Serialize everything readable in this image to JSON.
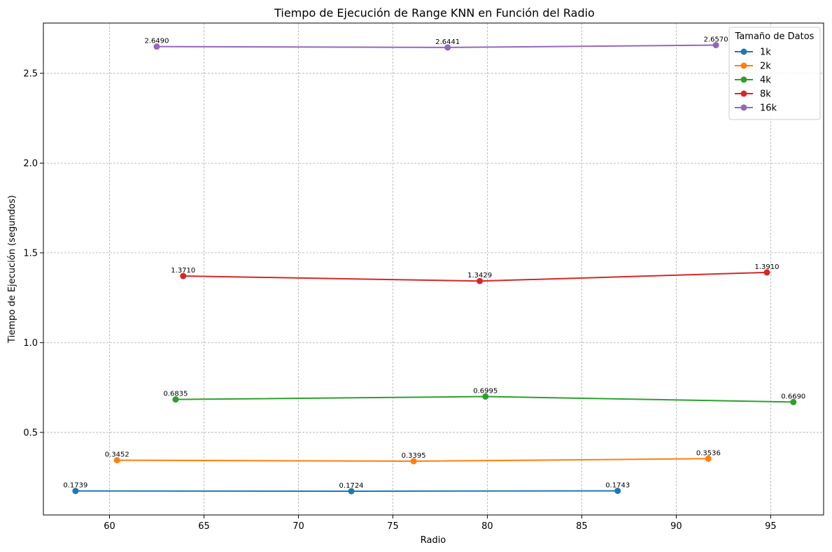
{
  "chart_data": {
    "type": "line",
    "title": "Tiempo de Ejecución de Range KNN en Función del Radio",
    "xlabel": "Radio",
    "ylabel": "Tiempo de Ejecución (segundos)",
    "xlim": [
      56.5,
      97.8
    ],
    "ylim": [
      0.04,
      2.78
    ],
    "xticks": [
      60,
      65,
      70,
      75,
      80,
      85,
      90,
      95
    ],
    "yticks": [
      0.5,
      1.0,
      1.5,
      2.0,
      2.5
    ],
    "xtick_labels": [
      "60",
      "65",
      "70",
      "75",
      "80",
      "85",
      "90",
      "95"
    ],
    "ytick_labels": [
      "0.5",
      "1.0",
      "1.5",
      "2.0",
      "2.5"
    ],
    "grid": true,
    "legend": {
      "title": "Tamaño de Datos",
      "placement": "top-right"
    },
    "series": [
      {
        "name": "1k",
        "color": "#1f77b4",
        "x": [
          58.2,
          72.8,
          86.9
        ],
        "y": [
          0.1739,
          0.1724,
          0.1743
        ],
        "labels": [
          "0.1739",
          "0.1724",
          "0.1743"
        ]
      },
      {
        "name": "2k",
        "color": "#ff7f0e",
        "x": [
          60.4,
          76.1,
          91.7
        ],
        "y": [
          0.3452,
          0.3395,
          0.3536
        ],
        "labels": [
          "0.3452",
          "0.3395",
          "0.3536"
        ]
      },
      {
        "name": "4k",
        "color": "#2ca02c",
        "x": [
          63.5,
          79.9,
          96.2
        ],
        "y": [
          0.6835,
          0.6995,
          0.669
        ],
        "labels": [
          "0.6835",
          "0.6995",
          "0.6690"
        ]
      },
      {
        "name": "8k",
        "color": "#d62728",
        "x": [
          63.9,
          79.6,
          94.8
        ],
        "y": [
          1.371,
          1.3429,
          1.391
        ],
        "labels": [
          "1.3710",
          "1.3429",
          "1.3910"
        ]
      },
      {
        "name": "16k",
        "color": "#9467bd",
        "x": [
          62.5,
          77.9,
          92.1
        ],
        "y": [
          2.649,
          2.6441,
          2.657
        ],
        "labels": [
          "2.6490",
          "2.6441",
          "2.6570"
        ]
      }
    ]
  }
}
